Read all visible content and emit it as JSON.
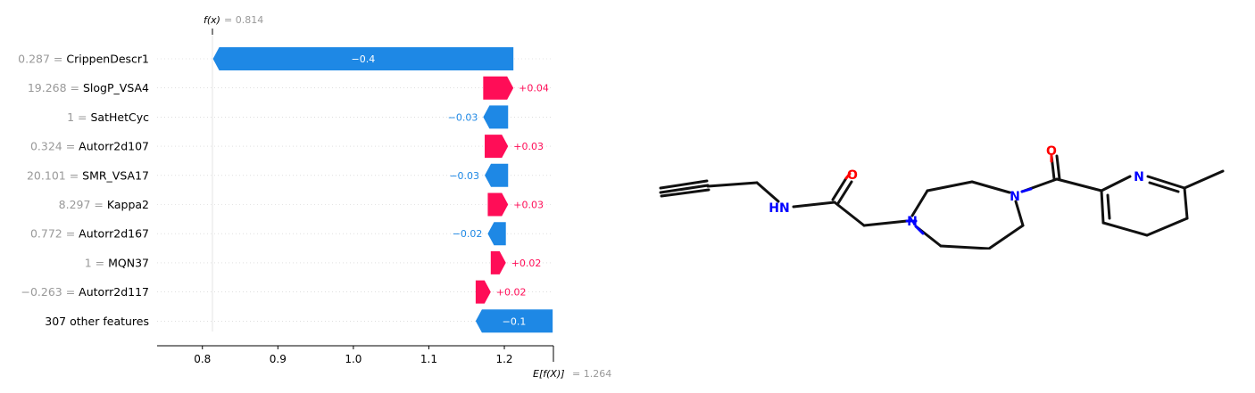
{
  "chart_data": {
    "type": "bar",
    "subtype": "shap-waterfall",
    "fx_label": "f(x)",
    "fx_value_text": "= 0.814",
    "fx": 0.814,
    "expected_label": "E[f(X)]",
    "expected_value_text": "= 1.264",
    "expected_value": 1.264,
    "xlim": [
      0.74,
      1.265
    ],
    "xticks": [
      0.8,
      0.9,
      1.0,
      1.1,
      1.2
    ],
    "xtick_labels": [
      "0.8",
      "0.9",
      "1.0",
      "1.1",
      "1.2"
    ],
    "grid": false,
    "colors": {
      "positive": "#ff0d57",
      "negative": "#1e88e5",
      "value_text": "#999999",
      "label_text": "#000000"
    },
    "features": [
      {
        "value": "0.287 =",
        "name": "CrippenDescr1",
        "contribution": -0.4,
        "start": 1.212,
        "end": 0.814,
        "label": "−0.4",
        "label_inside": true
      },
      {
        "value": "19.268 =",
        "name": "SlogP_VSA4",
        "contribution": 0.04,
        "start": 1.172,
        "end": 1.212,
        "label": "+0.04",
        "label_inside": false
      },
      {
        "value": "1 =",
        "name": "SatHetCyc",
        "contribution": -0.03,
        "start": 1.205,
        "end": 1.172,
        "label": "−0.03",
        "label_inside": false
      },
      {
        "value": "0.324 =",
        "name": "Autorr2d107",
        "contribution": 0.03,
        "start": 1.174,
        "end": 1.205,
        "label": "+0.03",
        "label_inside": false
      },
      {
        "value": "20.101 =",
        "name": "SMR_VSA17",
        "contribution": -0.03,
        "start": 1.205,
        "end": 1.174,
        "label": "−0.03",
        "label_inside": false
      },
      {
        "value": "8.297 =",
        "name": "Kappa2",
        "contribution": 0.03,
        "start": 1.178,
        "end": 1.205,
        "label": "+0.03",
        "label_inside": false
      },
      {
        "value": "0.772 =",
        "name": "Autorr2d167",
        "contribution": -0.02,
        "start": 1.202,
        "end": 1.178,
        "label": "−0.02",
        "label_inside": false
      },
      {
        "value": "1 =",
        "name": "MQN37",
        "contribution": 0.02,
        "start": 1.182,
        "end": 1.202,
        "label": "+0.02",
        "label_inside": false
      },
      {
        "value": "−0.263 =",
        "name": "Autorr2d117",
        "contribution": 0.02,
        "start": 1.162,
        "end": 1.182,
        "label": "+0.02",
        "label_inside": false
      },
      {
        "value": "",
        "name": "307 other features",
        "contribution": -0.1,
        "start": 1.264,
        "end": 1.162,
        "label": "−0.1",
        "label_inside": true
      }
    ]
  },
  "molecule": {
    "atom_labels": {
      "amide_nitrogen": "HN",
      "amide_oxygen": "O",
      "ring_nitrogen_1": "N",
      "ring_nitrogen_2": "N",
      "carbonyl_oxygen": "O",
      "pyridine_nitrogen": "N"
    },
    "colors": {
      "bond": "#111111",
      "nitrogen": "#0000ff",
      "oxygen": "#ff0000"
    }
  }
}
